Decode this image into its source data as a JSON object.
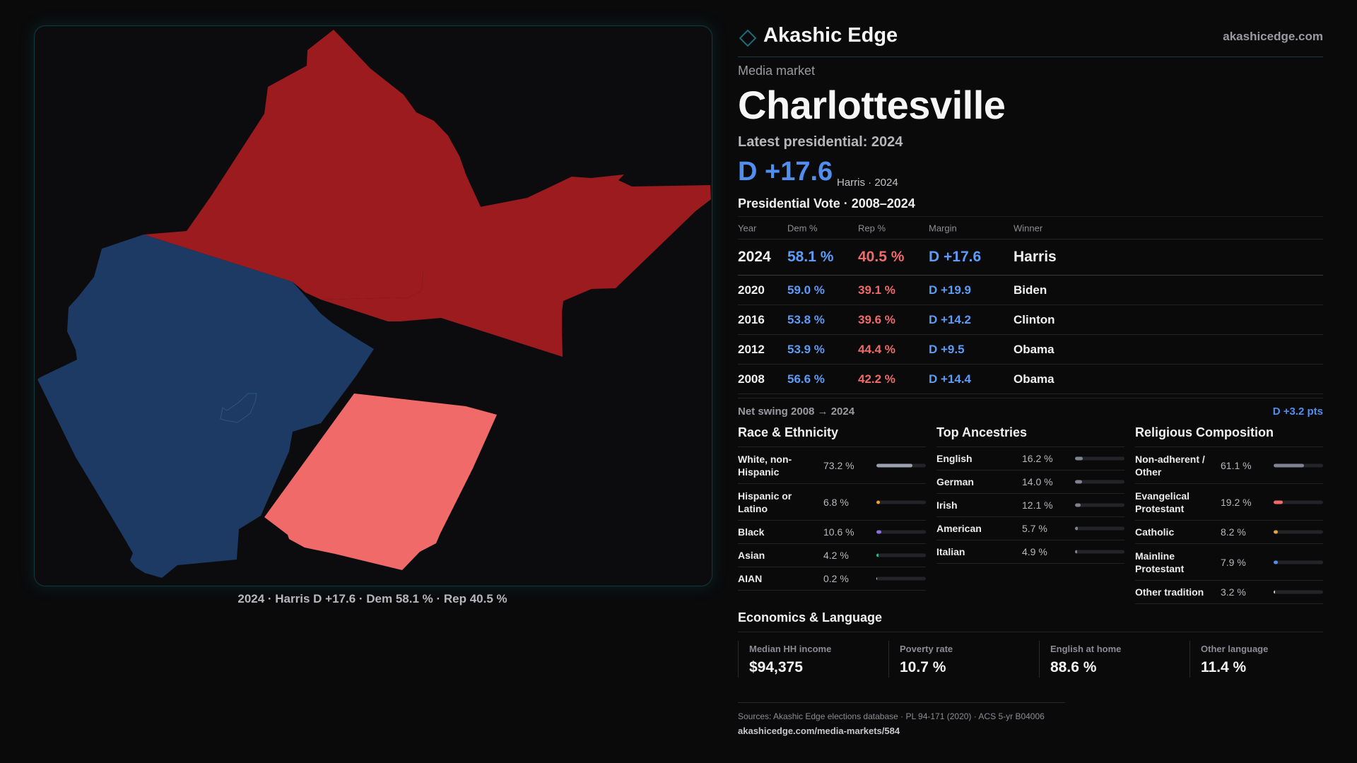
{
  "brand": {
    "name": "Akashic Edge",
    "url": "akashicedge.com",
    "accent": "#1c6a78"
  },
  "header": {
    "subtitle": "Media market",
    "title": "Charlottesville",
    "latest": "Latest presidential: 2024",
    "margin": "D +17.6",
    "margin_sub": "Harris · 2024"
  },
  "map": {
    "caption": "2024 · Harris D +17.6 · Dem 58.1 % · Rep 40.5 %",
    "colors": {
      "dem_dark": "#1c3a63",
      "rep_dark": "#9b1b1f",
      "rep_light": "#f06a6a"
    }
  },
  "vote": {
    "title": "Presidential Vote · 2008–2024",
    "headers": {
      "year": "Year",
      "dem": "Dem %",
      "rep": "Rep %",
      "margin": "Margin",
      "winner": "Winner"
    },
    "rows": [
      {
        "year": "2024",
        "dem": "58.1 %",
        "rep": "40.5 %",
        "margin": "D +17.6",
        "winner": "Harris"
      },
      {
        "year": "2020",
        "dem": "59.0 %",
        "rep": "39.1 %",
        "margin": "D +19.9",
        "winner": "Biden"
      },
      {
        "year": "2016",
        "dem": "53.8 %",
        "rep": "39.6 %",
        "margin": "D +14.2",
        "winner": "Clinton"
      },
      {
        "year": "2012",
        "dem": "53.9 %",
        "rep": "44.4 %",
        "margin": "D +9.5",
        "winner": "Obama"
      },
      {
        "year": "2008",
        "dem": "56.6 %",
        "rep": "42.2 %",
        "margin": "D +14.4",
        "winner": "Obama"
      }
    ],
    "swing_label": "Net swing 2008 → 2024",
    "swing_value": "D +3.2 pts"
  },
  "race": {
    "title": "Race & Ethnicity",
    "items": [
      {
        "label": "White, non-Hispanic",
        "value": "73.2 %",
        "pct": 73.2,
        "color": "#9aa0ad"
      },
      {
        "label": "Hispanic or Latino",
        "value": "6.8 %",
        "pct": 6.8,
        "color": "#e8a33a"
      },
      {
        "label": "Black",
        "value": "10.6 %",
        "pct": 10.6,
        "color": "#8b6fe0"
      },
      {
        "label": "Asian",
        "value": "4.2 %",
        "pct": 4.2,
        "color": "#2fb59a"
      },
      {
        "label": "AIAN",
        "value": "0.2 %",
        "pct": 0.2,
        "color": "#c9c9c9"
      }
    ]
  },
  "ancestry": {
    "title": "Top Ancestries",
    "items": [
      {
        "label": "English",
        "value": "16.2 %",
        "pct": 16.2,
        "color": "#7d8390"
      },
      {
        "label": "German",
        "value": "14.0 %",
        "pct": 14.0,
        "color": "#7d8390"
      },
      {
        "label": "Irish",
        "value": "12.1 %",
        "pct": 12.1,
        "color": "#7d8390"
      },
      {
        "label": "American",
        "value": "5.7 %",
        "pct": 5.7,
        "color": "#7d8390"
      },
      {
        "label": "Italian",
        "value": "4.9 %",
        "pct": 4.9,
        "color": "#7d8390"
      }
    ]
  },
  "religion": {
    "title": "Religious Composition",
    "items": [
      {
        "label": "Non-adherent / Other",
        "value": "61.1 %",
        "pct": 61.1,
        "color": "#7d8390"
      },
      {
        "label": "Evangelical Protestant",
        "value": "19.2 %",
        "pct": 19.2,
        "color": "#f06a6a"
      },
      {
        "label": "Catholic",
        "value": "8.2 %",
        "pct": 8.2,
        "color": "#e8a33a"
      },
      {
        "label": "Mainline Protestant",
        "value": "7.9 %",
        "pct": 7.9,
        "color": "#4f8ff0"
      },
      {
        "label": "Other tradition",
        "value": "3.2 %",
        "pct": 3.2,
        "color": "#c9c9c9"
      }
    ]
  },
  "economics": {
    "title": "Economics & Language",
    "items": [
      {
        "label": "Median HH income",
        "value": "$94,375"
      },
      {
        "label": "Poverty rate",
        "value": "10.7 %"
      },
      {
        "label": "English at home",
        "value": "88.6 %"
      },
      {
        "label": "Other language",
        "value": "11.4 %"
      }
    ]
  },
  "sources": {
    "line1": "Sources: Akashic Edge elections database · PL 94-171 (2020) · ACS 5-yr B04006",
    "line2": "akashicedge.com/media-markets/584"
  }
}
